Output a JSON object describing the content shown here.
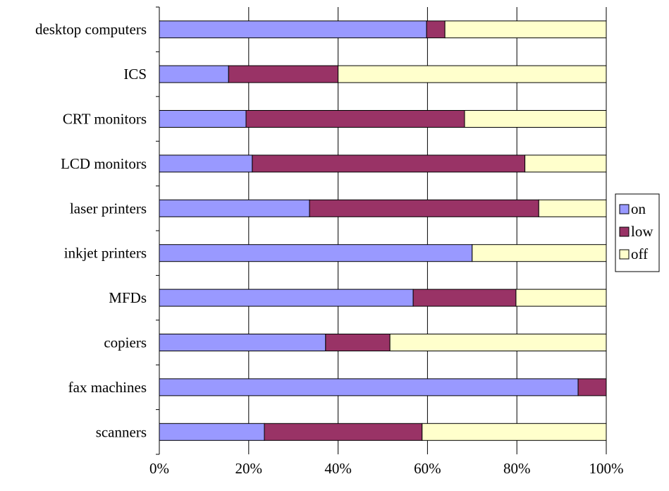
{
  "chart_data": {
    "type": "bar",
    "orientation": "horizontal",
    "stacked": "percent",
    "categories": [
      "desktop computers",
      "ICS",
      "CRT monitors",
      "LCD monitors",
      "laser printers",
      "inkjet printers",
      "MFDs",
      "copiers",
      "fax machines",
      "scanners"
    ],
    "series": [
      {
        "name": "on",
        "color": "#9999ff",
        "values": [
          59.8,
          15.5,
          19.4,
          20.8,
          33.6,
          70.0,
          56.8,
          37.2,
          93.7,
          23.5
        ]
      },
      {
        "name": "low",
        "color": "#993366",
        "values": [
          4.1,
          24.5,
          48.9,
          61.0,
          51.3,
          0.0,
          23.0,
          14.4,
          6.3,
          35.3
        ]
      },
      {
        "name": "off",
        "color": "#ffffcc",
        "values": [
          36.1,
          60.0,
          31.7,
          18.2,
          15.1,
          30.0,
          20.2,
          48.4,
          0.0,
          41.2
        ]
      }
    ],
    "xlim": [
      0,
      100
    ],
    "xticks": [
      "0%",
      "20%",
      "40%",
      "60%",
      "80%",
      "100%"
    ],
    "xtick_values": [
      0,
      20,
      40,
      60,
      80,
      100
    ],
    "grid": "vertical",
    "legend": "right",
    "title": "",
    "xlabel": "",
    "ylabel": ""
  }
}
